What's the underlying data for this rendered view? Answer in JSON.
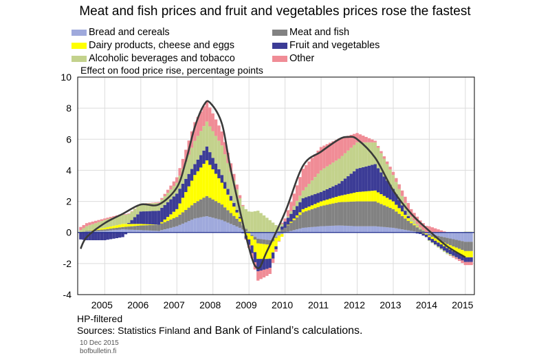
{
  "title": "Meat and fish prices and fruit and vegetables prices rose the fastest",
  "legend": [
    {
      "label": "Bread and cereals",
      "color": "#9fa9dc"
    },
    {
      "label": "Meat and fish",
      "color": "#828282"
    },
    {
      "label": "Dairy products, cheese and eggs",
      "color": "#ffff00"
    },
    {
      "label": "Fruit and vegetables",
      "color": "#3c3c96"
    },
    {
      "label": "Alcoholic beverages and tobacco",
      "color": "#c3d28c"
    },
    {
      "label": "Other",
      "color": "#f08c96"
    }
  ],
  "note": "HP-filtered",
  "sources_prefix": "Sources: Statistics Finland",
  "sources_suffix": " and Bank of Finland’s calculations.",
  "date": "10 Dec 2015",
  "site": "bofbulletin.fi",
  "chart_data": {
    "type": "bar",
    "stacked": true,
    "subtitle": "Effect on food price rise, percentage points",
    "ylim": [
      -4,
      10
    ],
    "yticks": [
      -4,
      -2,
      0,
      2,
      4,
      6,
      8,
      10
    ],
    "xlim": [
      2004.75,
      2015.75
    ],
    "xtick_labels": [
      "2005",
      "2006",
      "2007",
      "2008",
      "2009",
      "2010",
      "2011",
      "2012",
      "2013",
      "2014",
      "2015"
    ],
    "grid": true,
    "frequency": "monthly",
    "start": "2004-11",
    "end": "2015-09",
    "series_order": [
      "Bread and cereals",
      "Meat and fish",
      "Dairy products, cheese and eggs",
      "Fruit and vegetables",
      "Alcoholic beverages and tobacco",
      "Other"
    ],
    "keyframes": {
      "t": [
        2004.83,
        2005.0,
        2005.5,
        2006.0,
        2006.5,
        2007.0,
        2007.5,
        2008.0,
        2008.33,
        2008.75,
        2009.25,
        2009.75,
        2010.08,
        2010.5,
        2011.0,
        2011.5,
        2012.0,
        2012.5,
        2013.0,
        2013.5,
        2014.0,
        2014.5,
        2015.0,
        2015.5
      ],
      "Bread and cereals": [
        0.0,
        0.05,
        0.1,
        0.2,
        0.15,
        0.1,
        0.4,
        0.9,
        1.05,
        0.8,
        0.3,
        -0.4,
        -0.5,
        0.0,
        0.3,
        0.4,
        0.45,
        0.4,
        0.4,
        0.3,
        0.1,
        -0.1,
        -0.35,
        -0.6
      ],
      "Meat and fish": [
        0.0,
        0.05,
        0.1,
        0.15,
        0.3,
        0.4,
        0.6,
        1.0,
        1.3,
        1.0,
        0.4,
        -0.3,
        -0.3,
        0.3,
        1.0,
        1.3,
        1.5,
        1.6,
        1.6,
        1.2,
        0.5,
        -0.1,
        -0.4,
        -0.6
      ],
      "Dairy products, cheese and eggs": [
        0.0,
        0.0,
        0.1,
        0.2,
        0.1,
        0.0,
        0.5,
        1.8,
        2.3,
        1.4,
        0.2,
        -1.0,
        -0.9,
        0.0,
        0.2,
        0.3,
        0.4,
        0.6,
        0.7,
        0.5,
        0.1,
        -0.1,
        -0.25,
        -0.4
      ],
      "Fruit and vegetables": [
        -0.45,
        -0.5,
        -0.5,
        -0.3,
        0.8,
        0.9,
        1.0,
        0.7,
        0.9,
        0.5,
        0.1,
        -0.8,
        -0.6,
        0.4,
        0.7,
        0.6,
        0.8,
        1.5,
        1.7,
        0.8,
        0.0,
        -0.2,
        -0.3,
        -0.3
      ],
      "Alcoholic beverages and tobacco": [
        0.15,
        0.3,
        0.5,
        0.6,
        0.5,
        0.5,
        0.7,
        1.5,
        1.6,
        1.9,
        1.2,
        1.4,
        0.8,
        0.0,
        0.5,
        1.4,
        1.6,
        1.7,
        1.4,
        0.9,
        0.3,
        -0.05,
        -0.1,
        0.05
      ],
      "Other": [
        0.2,
        0.2,
        0.1,
        0.05,
        0.0,
        0.05,
        0.35,
        1.2,
        1.3,
        0.9,
        0.2,
        -0.6,
        -0.4,
        0.2,
        1.4,
        1.5,
        1.3,
        0.6,
        0.1,
        0.2,
        0.5,
        0.4,
        0.0,
        -0.2
      ]
    },
    "total_line": {
      "name": "",
      "x": [
        2004.83,
        2005.0,
        2005.5,
        2006.0,
        2006.5,
        2007.0,
        2007.5,
        2007.75,
        2008.0,
        2008.25,
        2008.42,
        2008.75,
        2009.0,
        2009.5,
        2009.75,
        2010.0,
        2010.5,
        2011.0,
        2011.5,
        2012.0,
        2012.25,
        2012.5,
        2013.0,
        2013.5,
        2014.0,
        2014.5,
        2015.0,
        2015.5
      ],
      "y": [
        -1.05,
        -0.3,
        0.6,
        1.2,
        1.8,
        1.8,
        2.9,
        4.6,
        6.8,
        8.2,
        8.35,
        7.0,
        4.0,
        -1.0,
        -2.3,
        -1.2,
        1.3,
        4.3,
        5.2,
        6.0,
        6.15,
        6.0,
        4.8,
        2.7,
        1.2,
        0.1,
        -0.9,
        -1.6
      ]
    }
  }
}
